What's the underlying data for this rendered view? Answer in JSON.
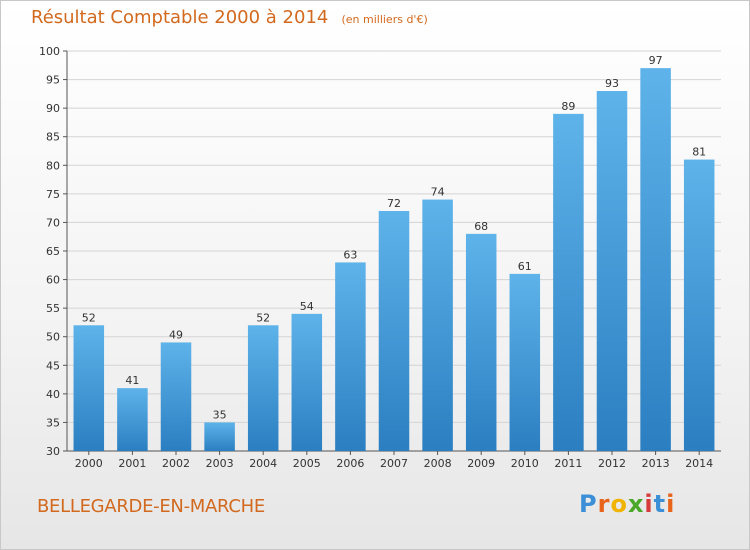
{
  "header": {
    "title": "Résultat Comptable 2000 à 2014",
    "unit": "(en milliers d'€)"
  },
  "footer": {
    "commune": "BELLEGARDE-EN-MARCHE",
    "logo_text": "Proxiti",
    "logo_colors": [
      "#3a8fd6",
      "#e8641a",
      "#f0b400",
      "#4aa829",
      "#d63a3a",
      "#3a8fd6",
      "#e8641a"
    ]
  },
  "colors": {
    "title": "#d2691e",
    "bar_light": "#5eb3ea",
    "bar_dark": "#2b7fc1"
  },
  "chart_data": {
    "type": "bar",
    "categories": [
      "2000",
      "2001",
      "2002",
      "2003",
      "2004",
      "2005",
      "2006",
      "2007",
      "2008",
      "2009",
      "2010",
      "2011",
      "2012",
      "2013",
      "2014"
    ],
    "values": [
      52,
      41,
      49,
      35,
      52,
      54,
      63,
      72,
      74,
      68,
      61,
      89,
      93,
      97,
      81
    ],
    "ylim": [
      30,
      100
    ],
    "yticks": [
      30,
      35,
      40,
      45,
      50,
      55,
      60,
      65,
      70,
      75,
      80,
      85,
      90,
      95,
      100
    ],
    "grid": true,
    "title": "Résultat Comptable 2000 à 2014",
    "xlabel": "",
    "ylabel": ""
  }
}
